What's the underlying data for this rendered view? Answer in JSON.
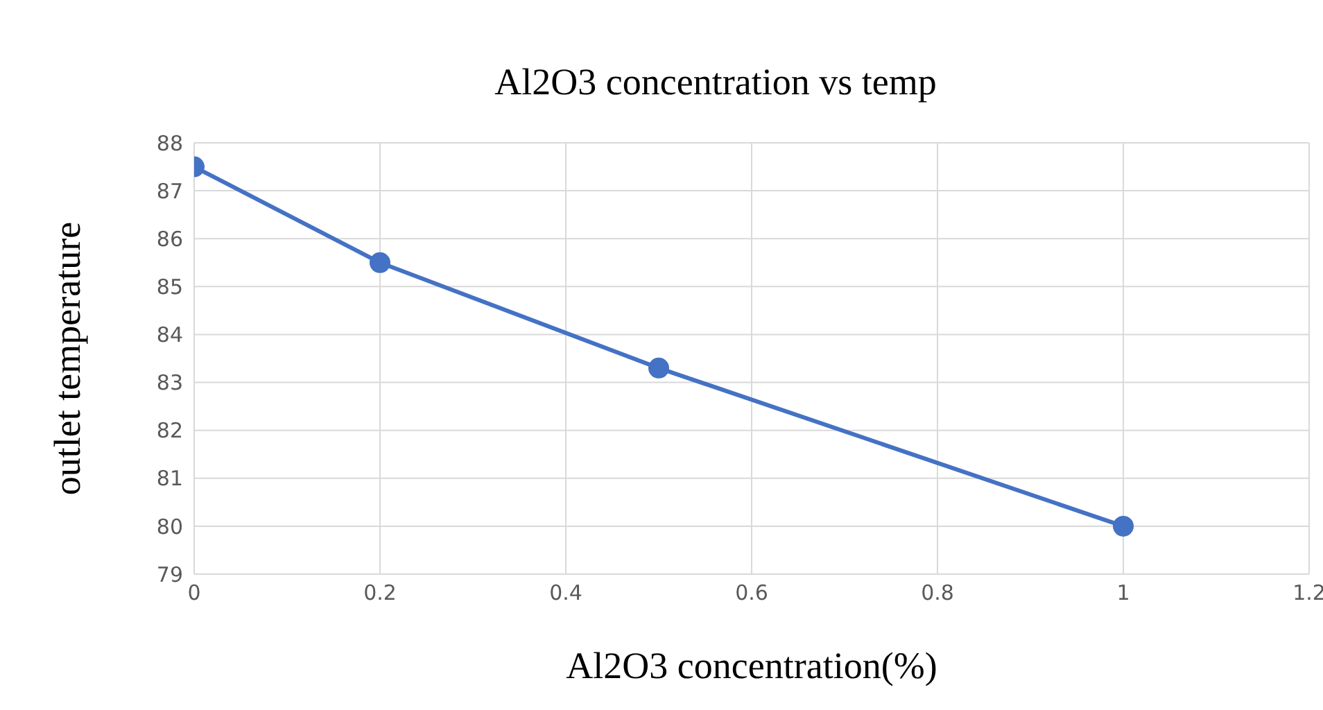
{
  "chart_data": {
    "type": "line",
    "title": "Al2O3 concentration vs temp",
    "xlabel": "Al2O3 concentration(%)",
    "ylabel": "outlet temperature",
    "x": [
      0,
      0.2,
      0.5,
      1
    ],
    "series": [
      {
        "color": "#4472c4",
        "values": [
          87.5,
          85.5,
          83.3,
          80
        ]
      }
    ],
    "xlim": [
      0,
      1.2
    ],
    "xticks": [
      0,
      0.2,
      0.4,
      0.6,
      0.8,
      1,
      1.2
    ],
    "ylim": [
      79,
      88
    ],
    "yticks": [
      79,
      80,
      81,
      82,
      83,
      84,
      85,
      86,
      87,
      88
    ],
    "grid": true,
    "legend": false,
    "marker": "circle",
    "line_style": "solid"
  }
}
